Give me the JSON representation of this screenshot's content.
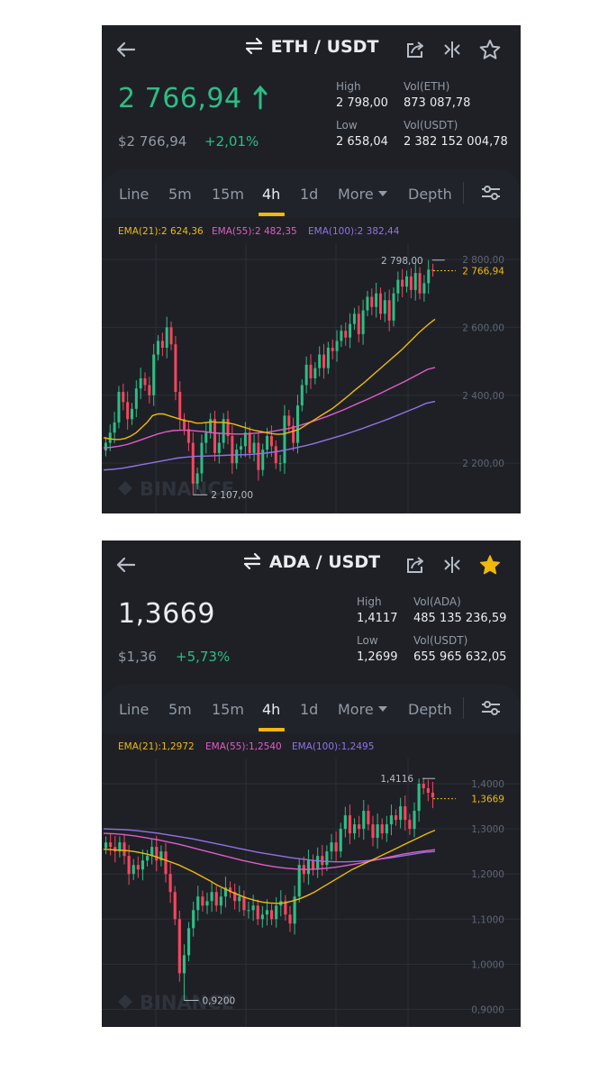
{
  "colors": {
    "up": "#2ebd85",
    "down": "#f6465d",
    "bg": "#1e2026",
    "accent": "#f0b90b",
    "ema21": "#f0b90b",
    "ema55": "#e25bc7",
    "ema100": "#9272e6"
  },
  "tabs": [
    "Line",
    "5m",
    "15m",
    "4h",
    "1d",
    "More",
    "Depth"
  ],
  "icons": [
    "arrow-left-icon",
    "swap-icon",
    "share-icon",
    "compare-icon",
    "star-icon",
    "settings-sliders-icon",
    "caret-down-icon"
  ],
  "eth": {
    "pair": "ETH / USDT",
    "price": "2 766,94",
    "price_fiat": "$2 766,94",
    "change": "+2,01%",
    "high_label": "High",
    "high": "2 798,00",
    "low_label": "Low",
    "low": "2 658,04",
    "vol1_label": "Vol(ETH)",
    "vol1": "873 087,78",
    "vol2_label": "Vol(USDT)",
    "vol2": "2 382 152 004,78",
    "ema21": "EMA(21):2 624,36",
    "ema55": "EMA(55):2 482,35",
    "ema100": "EMA(100):2 382,44",
    "watermark": "BINANCE",
    "favorite": false,
    "chart_data": {
      "type": "candlestick",
      "y_ticks": [
        "2 800,00",
        "2 600,00",
        "2 400,00",
        "2 200,00"
      ],
      "y_tick_values": [
        2800,
        2600,
        2400,
        2200
      ],
      "ylim": [
        2105,
        2800
      ],
      "current_price": 2766.94,
      "current_label": "2 766,94",
      "max_value": 2798,
      "max_label": "2 798,00",
      "min_value": 2107,
      "min_label": "2 107,00",
      "closes": [
        2260,
        2290,
        2320,
        2410,
        2380,
        2330,
        2360,
        2420,
        2450,
        2430,
        2400,
        2520,
        2560,
        2540,
        2600,
        2550,
        2410,
        2330,
        2300,
        2260,
        2140,
        2170,
        2260,
        2290,
        2330,
        2230,
        2260,
        2330,
        2280,
        2200,
        2240,
        2250,
        2290,
        2230,
        2260,
        2180,
        2240,
        2280,
        2250,
        2200,
        2200,
        2340,
        2310,
        2260,
        2370,
        2430,
        2490,
        2450,
        2480,
        2520,
        2480,
        2540,
        2530,
        2560,
        2590,
        2570,
        2610,
        2640,
        2580,
        2650,
        2690,
        2660,
        2700,
        2640,
        2680,
        2620,
        2700,
        2740,
        2720,
        2750,
        2710,
        2760,
        2700,
        2730,
        2770,
        2767
      ],
      "ema21": [
        2275,
        2272,
        2270,
        2270,
        2273,
        2280,
        2290,
        2305,
        2320,
        2340,
        2345,
        2345,
        2340,
        2335,
        2330,
        2325,
        2323,
        2318,
        2318,
        2320,
        2322,
        2320,
        2320,
        2318,
        2315,
        2310,
        2305,
        2300,
        2296,
        2293,
        2290,
        2287,
        2285,
        2286,
        2290,
        2295,
        2300,
        2310,
        2320,
        2330,
        2340,
        2350,
        2360,
        2372,
        2385,
        2398,
        2412,
        2425,
        2438,
        2452,
        2466,
        2480,
        2494,
        2508,
        2522,
        2536,
        2552,
        2568,
        2584,
        2598,
        2612,
        2624
      ],
      "ema55": [
        2245,
        2247,
        2250,
        2255,
        2262,
        2270,
        2278,
        2286,
        2292,
        2296,
        2297,
        2297,
        2295,
        2293,
        2290,
        2288,
        2287,
        2286,
        2286,
        2287,
        2289,
        2291,
        2294,
        2298,
        2302,
        2308,
        2315,
        2322,
        2330,
        2338,
        2347,
        2356,
        2366,
        2376,
        2386,
        2396,
        2407,
        2418,
        2429,
        2440,
        2452,
        2464,
        2476,
        2482
      ],
      "ema100": [
        2180,
        2182,
        2185,
        2190,
        2195,
        2200,
        2205,
        2210,
        2215,
        2218,
        2220,
        2221,
        2222,
        2223,
        2224,
        2225,
        2226,
        2228,
        2231,
        2235,
        2240,
        2246,
        2252,
        2259,
        2267,
        2275,
        2283,
        2292,
        2301,
        2311,
        2321,
        2331,
        2342,
        2353,
        2364,
        2376,
        2382
      ]
    }
  },
  "ada": {
    "pair": "ADA / USDT",
    "price": "1,3669",
    "price_fiat": "$1,36",
    "change": "+5,73%",
    "high_label": "High",
    "high": "1,4117",
    "low_label": "Low",
    "low": "1,2699",
    "vol1_label": "Vol(ADA)",
    "vol1": "485 135 236,59",
    "vol2_label": "Vol(USDT)",
    "vol2": "655 965 632,05",
    "ema21": "EMA(21):1,2972",
    "ema55": "EMA(55):1,2540",
    "ema100": "EMA(100):1,2495",
    "watermark": "BINANCE",
    "favorite": true,
    "chart_data": {
      "type": "candlestick",
      "y_ticks": [
        "1,4000",
        "1,3000",
        "1,2000",
        "1,1000",
        "1,0000",
        "0,9000"
      ],
      "y_tick_values": [
        1.4,
        1.3,
        1.2,
        1.1,
        1.0,
        0.9
      ],
      "ylim": [
        0.885,
        1.42
      ],
      "current_price": 1.3669,
      "current_label": "1,3669",
      "max_value": 1.4116,
      "max_label": "1,4116",
      "min_value": 0.92,
      "min_label": "0,9200",
      "closes": [
        1.27,
        1.26,
        1.25,
        1.27,
        1.24,
        1.2,
        1.22,
        1.21,
        1.23,
        1.24,
        1.26,
        1.23,
        1.25,
        1.2,
        1.16,
        1.1,
        0.98,
        1.02,
        1.08,
        1.12,
        1.15,
        1.13,
        1.14,
        1.16,
        1.13,
        1.15,
        1.17,
        1.16,
        1.14,
        1.15,
        1.12,
        1.12,
        1.13,
        1.1,
        1.11,
        1.12,
        1.1,
        1.13,
        1.14,
        1.11,
        1.09,
        1.15,
        1.22,
        1.2,
        1.23,
        1.21,
        1.24,
        1.22,
        1.25,
        1.27,
        1.25,
        1.3,
        1.33,
        1.29,
        1.31,
        1.3,
        1.34,
        1.31,
        1.28,
        1.31,
        1.29,
        1.31,
        1.33,
        1.32,
        1.35,
        1.32,
        1.3,
        1.34,
        1.4,
        1.39,
        1.38,
        1.37
      ],
      "ema21": [
        1.255,
        1.254,
        1.253,
        1.252,
        1.25,
        1.247,
        1.243,
        1.238,
        1.232,
        1.226,
        1.22,
        1.212,
        1.204,
        1.195,
        1.186,
        1.176,
        1.168,
        1.16,
        1.153,
        1.147,
        1.142,
        1.138,
        1.136,
        1.135,
        1.136,
        1.14,
        1.145,
        1.152,
        1.16,
        1.17,
        1.18,
        1.19,
        1.2,
        1.21,
        1.218,
        1.226,
        1.234,
        1.242,
        1.25,
        1.258,
        1.266,
        1.274,
        1.282,
        1.29,
        1.297
      ],
      "ema55": [
        1.29,
        1.289,
        1.287,
        1.284,
        1.28,
        1.276,
        1.271,
        1.266,
        1.26,
        1.254,
        1.248,
        1.242,
        1.236,
        1.23,
        1.225,
        1.22,
        1.216,
        1.213,
        1.211,
        1.21,
        1.211,
        1.213,
        1.216,
        1.22,
        1.224,
        1.229,
        1.234,
        1.239,
        1.244,
        1.248,
        1.251,
        1.254
      ],
      "ema100": [
        1.3,
        1.299,
        1.298,
        1.296,
        1.293,
        1.29,
        1.286,
        1.282,
        1.278,
        1.273,
        1.268,
        1.263,
        1.258,
        1.253,
        1.248,
        1.244,
        1.24,
        1.236,
        1.233,
        1.23,
        1.228,
        1.227,
        1.227,
        1.228,
        1.23,
        1.233,
        1.236,
        1.24,
        1.244,
        1.248,
        1.25
      ]
    }
  }
}
